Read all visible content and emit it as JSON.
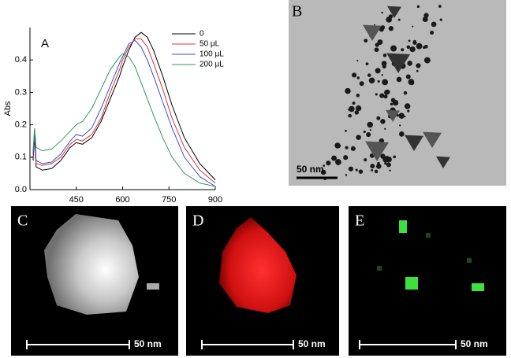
{
  "chart_data": {
    "type": "line",
    "title": "A",
    "y_label": "Abs",
    "x": [
      310,
      315,
      320,
      340,
      370,
      400,
      430,
      450,
      470,
      500,
      530,
      560,
      590,
      600,
      620,
      640,
      660,
      680,
      700,
      730,
      760,
      800,
      850,
      900
    ],
    "series": [
      {
        "name": "0",
        "color": "#000000",
        "values": [
          0.09,
          0.16,
          0.07,
          0.06,
          0.065,
          0.09,
          0.13,
          0.145,
          0.14,
          0.16,
          0.21,
          0.28,
          0.35,
          0.38,
          0.43,
          0.47,
          0.485,
          0.47,
          0.43,
          0.35,
          0.26,
          0.16,
          0.08,
          0.03
        ]
      },
      {
        "name": "50 μL",
        "color": "#e03030",
        "values": [
          0.1,
          0.17,
          0.08,
          0.075,
          0.08,
          0.1,
          0.14,
          0.155,
          0.15,
          0.17,
          0.22,
          0.3,
          0.37,
          0.4,
          0.44,
          0.465,
          0.465,
          0.44,
          0.39,
          0.31,
          0.22,
          0.13,
          0.06,
          0.02
        ]
      },
      {
        "name": "100 μL",
        "color": "#3050e0",
        "values": [
          0.11,
          0.18,
          0.09,
          0.08,
          0.085,
          0.11,
          0.15,
          0.17,
          0.165,
          0.19,
          0.25,
          0.32,
          0.39,
          0.41,
          0.45,
          0.46,
          0.44,
          0.4,
          0.35,
          0.27,
          0.19,
          0.1,
          0.04,
          0.01
        ]
      },
      {
        "name": "200 μL",
        "color": "#2e9a5a",
        "values": [
          0.12,
          0.19,
          0.13,
          0.12,
          0.125,
          0.15,
          0.18,
          0.2,
          0.21,
          0.25,
          0.31,
          0.37,
          0.41,
          0.42,
          0.41,
          0.38,
          0.33,
          0.28,
          0.23,
          0.16,
          0.1,
          0.05,
          0.02,
          0.01
        ]
      }
    ],
    "xlim": [
      300,
      900
    ],
    "xticks": [
      450,
      600,
      750,
      900
    ],
    "ylim": [
      0,
      0.5
    ],
    "yticks": [
      {
        "value": 0,
        "label": "0.0"
      },
      0.1,
      0.2,
      0.3,
      0.4
    ],
    "legend": "upper right"
  },
  "panels": [
    {
      "label": "B",
      "scale_bar": "50 nm"
    },
    {
      "label": "C",
      "scale_bar": "50 nm"
    },
    {
      "label": "D",
      "scale_bar": "50 nm"
    },
    {
      "label": "E",
      "scale_bar": "50 nm"
    }
  ]
}
